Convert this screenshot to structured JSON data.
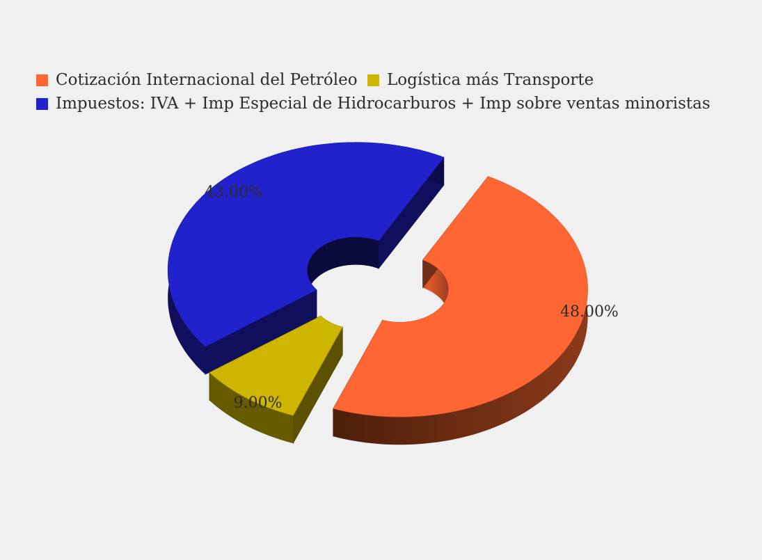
{
  "chart_data": {
    "type": "pie",
    "style": "3d-donut",
    "legend_position": "top-left",
    "categories": [
      "Cotización Internacional del Petróleo",
      "Logística más Transporte",
      "Impuestos: IVA + Imp Especial de Hidrocarburos + Imp sobre ventas minoristas"
    ],
    "values": [
      48,
      9,
      43
    ],
    "labels": [
      "48.00%",
      "9.00%",
      "43.00%"
    ],
    "colors": [
      "#ff6633",
      "#cdb500",
      "#2222cc"
    ]
  }
}
